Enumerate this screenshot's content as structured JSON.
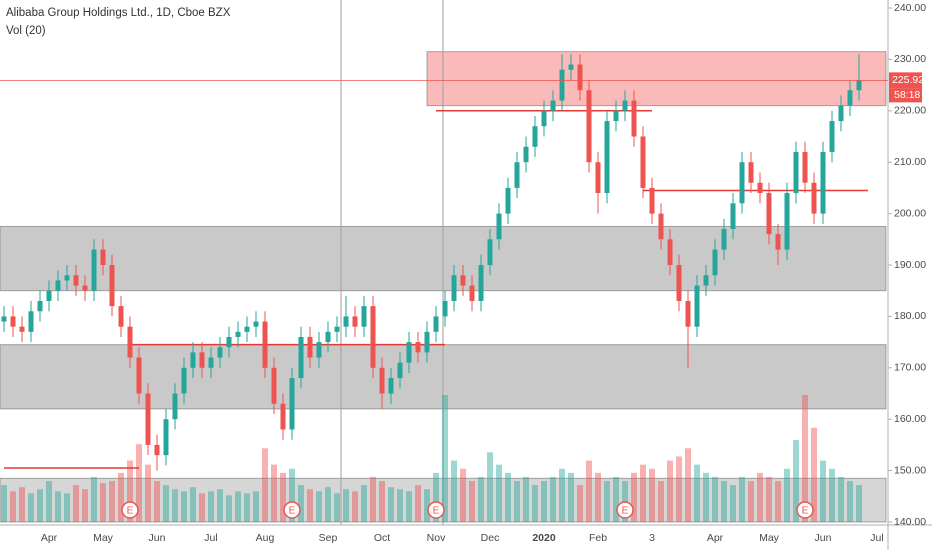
{
  "chart_data": {
    "type": "candlestick",
    "title": "Alibaba Group Holdings Ltd., 1D, Cboe BZX",
    "subtitle": "Vol (20)",
    "countdown": "58:18",
    "up_color": "#26a69a",
    "down_color": "#ef5350",
    "categories": [
      null,
      null,
      null,
      null,
      null,
      "Apr",
      null,
      null,
      null,
      null,
      null,
      "May",
      null,
      null,
      null,
      null,
      null,
      "Jun",
      null,
      null,
      null,
      null,
      null,
      "Jul",
      null,
      null,
      null,
      null,
      null,
      "Aug",
      null,
      null,
      null,
      null,
      null,
      null,
      "Sep",
      null,
      null,
      null,
      null,
      null,
      "Oct",
      null,
      null,
      null,
      null,
      null,
      "Nov",
      null,
      null,
      null,
      null,
      null,
      "Dec",
      null,
      null,
      null,
      null,
      null,
      "2020",
      null,
      null,
      null,
      null,
      null,
      "Feb",
      null,
      null,
      null,
      null,
      null,
      "3",
      null,
      null,
      null,
      null,
      null,
      null,
      "Apr",
      null,
      null,
      null,
      null,
      null,
      "May",
      null,
      null,
      null,
      null,
      null,
      "Jun",
      null,
      null,
      null,
      null,
      null,
      "Jul"
    ],
    "open": [
      179,
      180,
      178,
      177,
      181,
      183,
      185,
      187,
      188,
      186,
      185,
      193,
      190,
      182,
      178,
      172,
      165,
      155,
      153,
      160,
      165,
      170,
      173,
      170,
      172,
      174,
      176,
      177,
      178,
      179,
      170,
      163,
      158,
      168,
      176,
      172,
      175,
      177,
      178,
      180,
      178,
      182,
      170,
      165,
      168,
      171,
      175,
      173,
      177,
      180,
      183,
      188,
      186,
      183,
      190,
      195,
      200,
      205,
      210,
      213,
      217,
      220,
      222,
      228,
      229,
      224,
      210,
      204,
      218,
      220,
      222,
      215,
      205,
      200,
      195,
      190,
      183,
      178,
      186,
      188,
      193,
      197,
      202,
      210,
      206,
      204,
      196,
      193,
      204,
      212,
      206,
      200,
      212,
      218,
      221,
      224,
      null,
      null
    ],
    "high": [
      182,
      182,
      180,
      183,
      185,
      187,
      189,
      190,
      190,
      188,
      195,
      195,
      192,
      184,
      180,
      174,
      167,
      157,
      162,
      167,
      172,
      175,
      175,
      174,
      176,
      178,
      179,
      180,
      181,
      181,
      172,
      165,
      170,
      178,
      178,
      177,
      179,
      180,
      184,
      182,
      184,
      184,
      172,
      170,
      173,
      177,
      177,
      179,
      182,
      185,
      190,
      190,
      188,
      192,
      197,
      202,
      207,
      212,
      215,
      219,
      222,
      224,
      231,
      231,
      231,
      226,
      212,
      220,
      222,
      224,
      224,
      217,
      207,
      202,
      197,
      192,
      185,
      188,
      190,
      195,
      199,
      204,
      212,
      212,
      208,
      206,
      198,
      206,
      214,
      214,
      208,
      214,
      220,
      223,
      226,
      231,
      null,
      null
    ],
    "low": [
      177,
      176,
      175,
      175,
      179,
      181,
      183,
      185,
      184,
      183,
      183,
      188,
      180,
      176,
      170,
      163,
      153,
      150,
      151,
      158,
      163,
      168,
      168,
      168,
      170,
      172,
      174,
      175,
      176,
      168,
      161,
      156,
      156,
      166,
      170,
      170,
      173,
      175,
      176,
      176,
      176,
      168,
      162,
      163,
      166,
      169,
      171,
      171,
      175,
      178,
      181,
      184,
      181,
      181,
      188,
      193,
      198,
      203,
      208,
      211,
      215,
      218,
      220,
      226,
      222,
      208,
      200,
      202,
      216,
      218,
      213,
      203,
      198,
      193,
      188,
      181,
      170,
      176,
      184,
      186,
      191,
      195,
      200,
      204,
      202,
      194,
      190,
      191,
      202,
      204,
      198,
      198,
      210,
      216,
      219,
      222,
      null,
      null
    ],
    "close": [
      180,
      178,
      177,
      181,
      183,
      185,
      187,
      188,
      186,
      185,
      193,
      190,
      182,
      178,
      172,
      165,
      155,
      153,
      160,
      165,
      170,
      173,
      170,
      172,
      174,
      176,
      177,
      178,
      179,
      170,
      163,
      158,
      168,
      176,
      172,
      175,
      177,
      178,
      180,
      178,
      182,
      170,
      165,
      168,
      171,
      175,
      173,
      177,
      180,
      183,
      188,
      186,
      183,
      190,
      195,
      200,
      205,
      210,
      213,
      217,
      220,
      222,
      228,
      229,
      224,
      210,
      204,
      218,
      220,
      222,
      215,
      205,
      200,
      195,
      190,
      183,
      178,
      186,
      188,
      193,
      197,
      202,
      210,
      206,
      204,
      196,
      193,
      204,
      212,
      206,
      200,
      212,
      218,
      221,
      224,
      225.92,
      null,
      null
    ],
    "volume": [
      18,
      15,
      17,
      14,
      16,
      20,
      15,
      14,
      18,
      16,
      22,
      19,
      20,
      24,
      30,
      38,
      28,
      20,
      18,
      16,
      15,
      17,
      14,
      15,
      16,
      13,
      15,
      14,
      15,
      36,
      28,
      24,
      26,
      18,
      16,
      15,
      17,
      14,
      16,
      15,
      18,
      22,
      20,
      17,
      16,
      15,
      18,
      16,
      24,
      62,
      30,
      26,
      20,
      22,
      34,
      28,
      24,
      20,
      22,
      18,
      20,
      22,
      26,
      24,
      18,
      30,
      24,
      20,
      22,
      20,
      24,
      28,
      26,
      20,
      30,
      32,
      36,
      28,
      24,
      22,
      20,
      18,
      22,
      20,
      24,
      22,
      20,
      26,
      40,
      62,
      46,
      30,
      26,
      22,
      20,
      18,
      null,
      null
    ],
    "ylim": [
      140,
      240
    ],
    "yticks": [
      {
        "value": 140,
        "label": "140.00"
      },
      {
        "value": 150,
        "label": "150.00"
      },
      {
        "value": 160,
        "label": "160.00"
      },
      {
        "value": 170,
        "label": "170.00"
      },
      {
        "value": 180,
        "label": "180.00"
      },
      {
        "value": 190,
        "label": "190.00"
      },
      {
        "value": 200,
        "label": "200.00"
      },
      {
        "value": 210,
        "label": "210.00"
      },
      {
        "value": 220,
        "label": "220.00"
      },
      {
        "value": 230,
        "label": "230.00"
      },
      {
        "value": 240,
        "label": "240.00"
      }
    ],
    "zones": [
      {
        "from": 185,
        "to": 197.5,
        "start": 0,
        "end": 97,
        "color": "rgba(120,120,120,0.4)"
      },
      {
        "from": 162,
        "to": 174.5,
        "start": 0,
        "end": 97,
        "color": "rgba(120,120,120,0.4)"
      },
      {
        "from": 221,
        "to": 231.5,
        "start": 48,
        "end": 97,
        "color": "rgba(239,83,80,0.4)"
      },
      {
        "from": 140,
        "to": 148.5,
        "start": 0,
        "end": 97,
        "color": "rgba(120,120,120,0.3)"
      }
    ],
    "levels": [
      {
        "price": 150.5,
        "start": 0,
        "end": 14,
        "color": "#e53935"
      },
      {
        "price": 174.5,
        "start": 14,
        "end": 48,
        "color": "#e53935"
      },
      {
        "price": 220,
        "start": 48,
        "end": 71,
        "color": "#e53935"
      },
      {
        "price": 204.5,
        "start": 71,
        "end": 95,
        "color": "#e53935"
      }
    ],
    "events": [
      {
        "index": 14,
        "label": "E"
      },
      {
        "index": 32,
        "label": "E"
      },
      {
        "index": 48,
        "label": "E"
      },
      {
        "index": 69,
        "label": "E"
      },
      {
        "index": 89,
        "label": "E"
      }
    ]
  }
}
